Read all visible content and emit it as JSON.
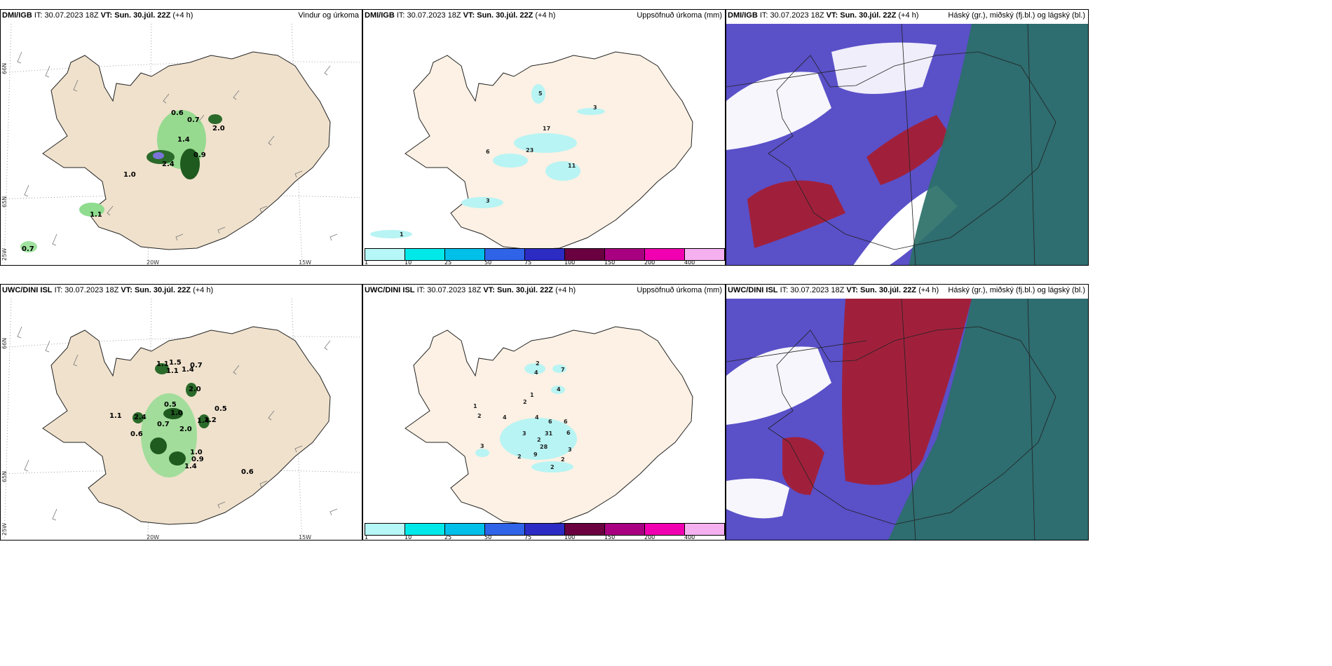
{
  "rows": [
    {
      "model": "DMI/IGB",
      "it": "30.07.2023 18Z",
      "vt": "Sun. 30.júl. 22Z",
      "lead": "(+4 h)",
      "precip_labels": [
        "0.6",
        "0.7",
        "2.0",
        "1.4",
        "0.9",
        "1.0",
        "2.4",
        "1.1",
        "0.7"
      ],
      "accum_labels": [
        "5",
        "3",
        "17",
        "6",
        "23",
        "11",
        "3",
        "1"
      ]
    },
    {
      "model": "UWC/DINI ISL",
      "it": "30.07.2023 18Z",
      "vt": "Sun. 30.júl. 22Z",
      "lead": "(+4 h)",
      "precip_labels": [
        "1.1",
        "1.5",
        "1.1",
        "1.4",
        "0.7",
        "2.0",
        "0.5",
        "1.0",
        "0.5",
        "1.1",
        "2.4",
        "0.7",
        "0.6",
        "2.0",
        "1.4",
        "1.2",
        "1.0",
        "0.9",
        "1.4",
        "0.6"
      ],
      "accum_labels": [
        "2",
        "7",
        "4",
        "4",
        "1",
        "2",
        "1",
        "2",
        "4",
        "4",
        "6",
        "6",
        "3",
        "31",
        "6",
        "2",
        "28",
        "3",
        "2",
        "9",
        "2",
        "2",
        "3"
      ]
    }
  ],
  "labels": {
    "it": "IT:",
    "vt": "VT:",
    "wind_title": "Vindur og úrkoma",
    "accum_title": "Uppsöfnuð úrkoma (mm)",
    "cloud_title": "Háský (gr.), miðský (fj.bl.) og lágský (bl.)"
  },
  "axis_labels": [
    "66N",
    "65N",
    "25W",
    "20W",
    "15W"
  ],
  "colorbar": {
    "ticks": [
      "1",
      "10",
      "25",
      "50",
      "75",
      "100",
      "150",
      "200",
      "400"
    ],
    "colors": [
      "#b6f7f7",
      "#00e8e8",
      "#00bfe8",
      "#2f63e8",
      "#2c2cc4",
      "#6a0040",
      "#a80080",
      "#f000b0",
      "#f5b0f0"
    ]
  },
  "colors": {
    "land_wind": "#efe1cc",
    "land_accum": "#fcf1e4",
    "cloud_blue": "#5a50c8",
    "cloud_green": "#2a7068",
    "cloud_red": "#a0203c"
  }
}
